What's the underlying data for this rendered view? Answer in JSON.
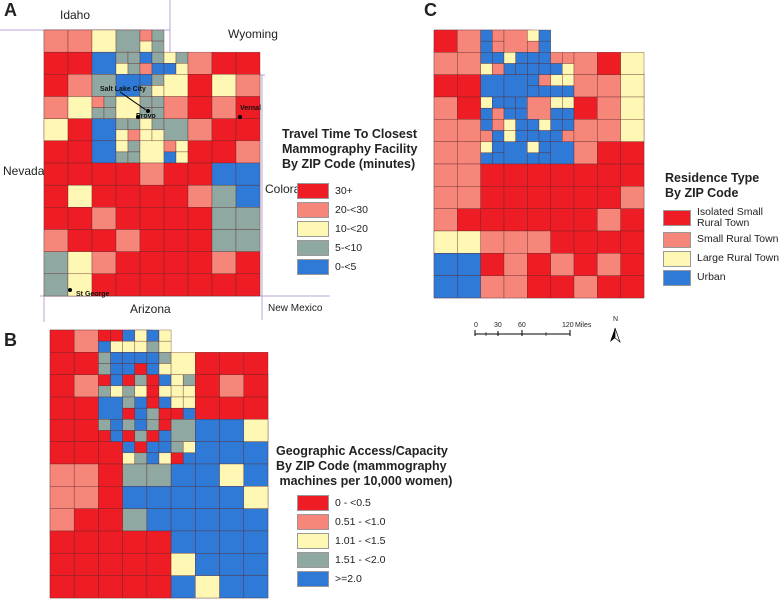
{
  "colors": {
    "red": "#ee1c24",
    "salmon": "#f6857a",
    "yellow": "#fff8b4",
    "teal": "#8fa8a2",
    "blue": "#2e7ad6"
  },
  "panelA": {
    "letter": "A",
    "states": {
      "north": "Idaho",
      "northeast": "Wyoming",
      "west": "Nevada",
      "east": "Colorado",
      "south": "Arizona",
      "southeast": "New Mexico"
    },
    "cities": {
      "slc": "Salt Lake City",
      "provo": "Provo",
      "vernal": "Vernal",
      "stgeorge": "St George"
    },
    "legend_title": [
      "Travel Time To Closest",
      "Mammography Facility",
      "By ZIP Code (minutes)"
    ],
    "legend": [
      {
        "label": "30+",
        "color": "#ee1c24"
      },
      {
        "label": "20-<30",
        "color": "#f6857a"
      },
      {
        "label": "10-<20",
        "color": "#fff8b4"
      },
      {
        "label": "5-<10",
        "color": "#8fa8a2"
      },
      {
        "label": "0-<5",
        "color": "#2e7ad6"
      }
    ]
  },
  "panelB": {
    "letter": "B",
    "legend_title": [
      "Geographic Access/Capacity",
      "By ZIP Code (mammography",
      " machines per 10,000 women)"
    ],
    "legend": [
      {
        "label": "0 - <0.5",
        "color": "#ee1c24"
      },
      {
        "label": "0.51 - <1.0",
        "color": "#f6857a"
      },
      {
        "label": "1.01 - <1.5",
        "color": "#fff8b4"
      },
      {
        "label": "1.51 - <2.0",
        "color": "#8fa8a2"
      },
      {
        "label": ">=2.0",
        "color": "#2e7ad6"
      }
    ]
  },
  "panelC": {
    "letter": "C",
    "legend_title": [
      "Residence Type",
      "By ZIP Code"
    ],
    "legend": [
      {
        "label": "Isolated Small Rural Town",
        "color": "#ee1c24"
      },
      {
        "label": "Small Rural Town",
        "color": "#f6857a"
      },
      {
        "label": "Large Rural Town",
        "color": "#fff8b4"
      },
      {
        "label": "Urban",
        "color": "#2e7ad6"
      }
    ],
    "scale": {
      "ticks": [
        "0",
        "30",
        "60",
        "120"
      ],
      "unit": "Miles"
    },
    "north_arrow": "N"
  }
}
